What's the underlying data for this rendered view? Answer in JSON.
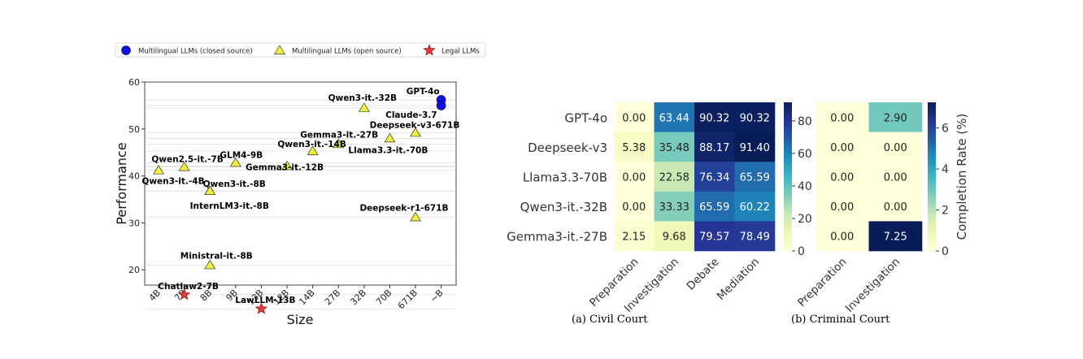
{
  "chart_data": [
    {
      "type": "scatter",
      "xlabel": "Size",
      "ylabel": "Performance",
      "x_tick_labels": [
        "4B",
        "7B",
        "8B",
        "9B",
        "13B",
        "12B",
        "14B",
        "27B",
        "32B",
        "70B",
        "671B",
        "~B"
      ],
      "ylim": [
        10,
        60
      ],
      "yticks": [
        20,
        30,
        40,
        50,
        60
      ],
      "legend": [
        {
          "label": "Multilingual LLMs (closed source)",
          "marker": "circle",
          "color": "#1010dd"
        },
        {
          "label": "Multilingual LLMs (open source)",
          "marker": "triangle",
          "color": "#f0f03c"
        },
        {
          "label": "Legal LLMs",
          "marker": "star",
          "color": "#e03a3a"
        }
      ],
      "points": [
        {
          "name": "GPT-4o",
          "x": 11,
          "y": 56.2,
          "group": "closed"
        },
        {
          "name": "Claude-3.7",
          "x": 11,
          "y": 55.0,
          "group": "closed"
        },
        {
          "name": "Qwen3-it.-32B",
          "x": 8,
          "y": 54.5,
          "group": "open"
        },
        {
          "name": "Deepseek-v3-671B",
          "x": 10,
          "y": 49.2,
          "group": "open"
        },
        {
          "name": "Llama3.3-it.-70B",
          "x": 9,
          "y": 48.0,
          "group": "open"
        },
        {
          "name": "Gemma3-it.-27B",
          "x": 7,
          "y": 46.8,
          "group": "open"
        },
        {
          "name": "Qwen3-it.-14B",
          "x": 6,
          "y": 45.3,
          "group": "open"
        },
        {
          "name": "Gemma3-it.-12B",
          "x": 5,
          "y": 42.1,
          "group": "open"
        },
        {
          "name": "GLM4-9B",
          "x": 3,
          "y": 42.8,
          "group": "open"
        },
        {
          "name": "Qwen2.5-it.-7B",
          "x": 1,
          "y": 41.9,
          "group": "open"
        },
        {
          "name": "Qwen3-it.-4B",
          "x": 0,
          "y": 41.2,
          "group": "open"
        },
        {
          "name": "Qwen3-it.-8B",
          "x": 2,
          "y": 36.8,
          "group": "open"
        },
        {
          "name": "InternLM3-it.-8B",
          "x": 2,
          "y": 36.8,
          "group": "open"
        },
        {
          "name": "Deepseek-r1-671B",
          "x": 10,
          "y": 31.2,
          "group": "open"
        },
        {
          "name": "Ministral-it.-8B",
          "x": 2,
          "y": 21.0,
          "group": "open"
        },
        {
          "name": "Chatlaw2-7B",
          "x": 1,
          "y": 14.7,
          "group": "legal"
        },
        {
          "name": "LawLLM-13B",
          "x": 4,
          "y": 11.7,
          "group": "legal"
        }
      ]
    },
    {
      "type": "heatmap",
      "caption": "(a) Civil Court",
      "rows": [
        "GPT-4o",
        "Deepseek-v3",
        "Llama3.3-70B",
        "Qwen3-it.-32B",
        "Gemma3-it.-27B"
      ],
      "columns": [
        "Preparation",
        "Investigation",
        "Debate",
        "Mediation"
      ],
      "values": [
        [
          "0.00",
          "63.44",
          "90.32",
          "90.32"
        ],
        [
          "5.38",
          "35.48",
          "88.17",
          "91.40"
        ],
        [
          "0.00",
          "22.58",
          "76.34",
          "65.59"
        ],
        [
          "0.00",
          "33.33",
          "65.59",
          "60.22"
        ],
        [
          "2.15",
          "9.68",
          "79.57",
          "78.49"
        ]
      ],
      "vmin": 0,
      "vmax": 91.4,
      "colorbar_ticks": [
        "0",
        "20",
        "40",
        "60",
        "80"
      ],
      "colorbar_tick_values": [
        0,
        20,
        40,
        60,
        80
      ]
    },
    {
      "type": "heatmap",
      "caption": "(b) Criminal Court",
      "columns": [
        "Preparation",
        "Investigation"
      ],
      "values": [
        [
          "0.00",
          "2.90"
        ],
        [
          "0.00",
          "0.00"
        ],
        [
          "0.00",
          "0.00"
        ],
        [
          "0.00",
          "0.00"
        ],
        [
          "0.00",
          "7.25"
        ]
      ],
      "vmin": 0,
      "vmax": 7.25,
      "colorbar_label": "Completion Rate (%)",
      "colorbar_ticks": [
        "0",
        "2",
        "4",
        "6"
      ],
      "colorbar_tick_values": [
        0,
        2,
        4,
        6
      ]
    }
  ]
}
